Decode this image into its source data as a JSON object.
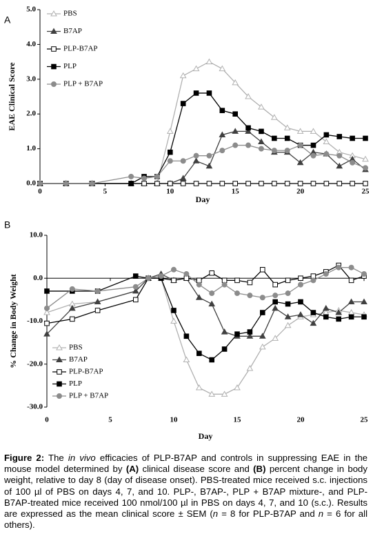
{
  "charts": [
    {
      "type": "line",
      "panel_label": "A",
      "xlabel": "Day",
      "ylabel": "EAE Clinical Score",
      "x": [
        0,
        2,
        4,
        7,
        8,
        9,
        10,
        11,
        12,
        13,
        14,
        15,
        16,
        17,
        18,
        19,
        20,
        21,
        22,
        23,
        24,
        25
      ],
      "xlim": [
        0,
        25
      ],
      "xticks": [
        0,
        5,
        10,
        15,
        20,
        25
      ],
      "ylim": [
        0,
        5
      ],
      "yticks": [
        {
          "value": 0,
          "label": "0.0"
        },
        {
          "value": 1,
          "label": "1.0"
        },
        {
          "value": 2,
          "label": "2.0"
        },
        {
          "value": 3,
          "label": "3.0"
        },
        {
          "value": 4,
          "label": "4.0"
        },
        {
          "value": 5,
          "label": "5.0"
        }
      ],
      "legend": "upper left",
      "series": [
        {
          "name": "PBS",
          "color": "#b0b0b0",
          "marker": "triangle-open",
          "values": [
            0,
            0,
            0,
            0,
            0,
            0,
            1.5,
            3.1,
            3.3,
            3.5,
            3.3,
            2.9,
            2.5,
            2.2,
            1.9,
            1.6,
            1.5,
            1.5,
            1.2,
            0.9,
            0.8,
            0.7
          ]
        },
        {
          "name": "B7AP",
          "color": "#404040",
          "marker": "triangle",
          "values": [
            0,
            0,
            0,
            0,
            0,
            0,
            0,
            0.15,
            0.65,
            0.5,
            1.4,
            1.5,
            1.5,
            1.2,
            0.9,
            0.9,
            0.6,
            0.9,
            0.85,
            0.5,
            0.7,
            0.4
          ]
        },
        {
          "name": "PLP-B7AP",
          "color": "#000000",
          "marker": "square-open",
          "values": [
            0,
            0,
            0,
            0,
            0,
            0,
            0,
            0,
            0,
            0,
            0,
            0,
            0,
            0,
            0,
            0,
            0,
            0,
            0,
            0,
            0,
            0
          ]
        },
        {
          "name": "PLP",
          "color": "#000000",
          "marker": "square",
          "values": [
            0,
            0,
            0,
            0,
            0.2,
            0.2,
            0.9,
            2.3,
            2.6,
            2.6,
            2.1,
            2.0,
            1.6,
            1.5,
            1.3,
            1.3,
            1.1,
            1.1,
            1.4,
            1.35,
            1.3,
            1.3
          ]
        },
        {
          "name": "PLP + B7AP",
          "color": "#8c8c8c",
          "marker": "circle",
          "values": [
            0,
            0,
            0,
            0.2,
            0.15,
            0.2,
            0.65,
            0.65,
            0.8,
            0.8,
            0.95,
            1.1,
            1.1,
            1.0,
            0.95,
            0.95,
            1.1,
            0.8,
            0.85,
            0.8,
            0.6,
            0.45
          ]
        }
      ]
    },
    {
      "type": "line",
      "panel_label": "B",
      "xlabel": "Day",
      "ylabel": "% Change in Body Weight",
      "x": [
        0,
        2,
        4,
        7,
        8,
        9,
        10,
        11,
        12,
        13,
        14,
        15,
        16,
        17,
        18,
        19,
        20,
        21,
        22,
        23,
        24,
        25
      ],
      "xlim": [
        0,
        25
      ],
      "xticks": [
        0,
        5,
        10,
        15,
        20,
        25
      ],
      "ylim": [
        -30,
        10
      ],
      "yticks": [
        {
          "value": -30,
          "label": "-30.0"
        },
        {
          "value": -20,
          "label": "-20.0"
        },
        {
          "value": -10,
          "label": "-10.0"
        },
        {
          "value": 0,
          "label": "0.0"
        },
        {
          "value": 10,
          "label": "10.0"
        }
      ],
      "legend": "lower left",
      "series": [
        {
          "name": "PBS",
          "color": "#b0b0b0",
          "marker": "triangle-open",
          "values": [
            -8,
            -6,
            -5.5,
            -3,
            0,
            0,
            -10,
            -19,
            -25.5,
            -27,
            -27,
            -25.5,
            -21,
            -16,
            -14,
            -11,
            -9,
            -8.5,
            -8,
            -7.5,
            -8,
            -8.5
          ]
        },
        {
          "name": "B7AP",
          "color": "#404040",
          "marker": "triangle",
          "values": [
            -13,
            -7,
            -5.5,
            -3,
            0,
            1,
            -0.5,
            0,
            -4.5,
            -6,
            -12.5,
            -13.5,
            -13.5,
            -13.5,
            -7,
            -9,
            -8.5,
            -10.5,
            -7,
            -8,
            -5.5,
            -5.5
          ]
        },
        {
          "name": "PLP-B7AP",
          "color": "#000000",
          "marker": "square-open",
          "values": [
            -10.5,
            -9.5,
            -7.5,
            -5,
            0,
            0,
            -0.5,
            0,
            -0.5,
            1.2,
            -0.5,
            -0.5,
            -1,
            2,
            -1.5,
            -0.5,
            0,
            0.5,
            1.5,
            3,
            -0.5,
            0.5
          ]
        },
        {
          "name": "PLP",
          "color": "#000000",
          "marker": "square",
          "values": [
            -3,
            -3,
            -3,
            0.5,
            0,
            0,
            -7.5,
            -13.5,
            -17.5,
            -19,
            -16.5,
            -13,
            -12.5,
            -8,
            -5.5,
            -6,
            -5.5,
            -8,
            -9,
            -9.5,
            -9,
            -9
          ]
        },
        {
          "name": "PLP + B7AP",
          "color": "#8c8c8c",
          "marker": "circle",
          "values": [
            -7,
            -2.5,
            -3,
            -2,
            0,
            0.5,
            2,
            1,
            -1.5,
            -3.5,
            -1.5,
            -3.5,
            -4,
            -4.5,
            -4,
            -3.5,
            -1.5,
            -0.5,
            1,
            2.5,
            2.5,
            1
          ]
        }
      ]
    }
  ],
  "caption": [
    "Figure 2:",
    " The ",
    "in vivo",
    " efficacies of PLP-B7AP and controls in suppressing EAE in the mouse model determined by ",
    "(A)",
    " clinical disease score and ",
    "(B)",
    " percent change in body weight, relative to day 8 (day of disease onset). PBS-treated mice received s.c. injections of 100 µl of PBS on days 4, 7, and 10.  PLP-, B7AP-, PLP + B7AP mixture-, and PLP-B7AP-treated mice received 100 nmol/100 µl in PBS on days 4, 7, and 10 (s.c.). Results are expressed as the mean clinical score ± SEM (",
    "n",
    " = 8 for PLP-B7AP and ",
    "n",
    " = 6 for all others)."
  ]
}
